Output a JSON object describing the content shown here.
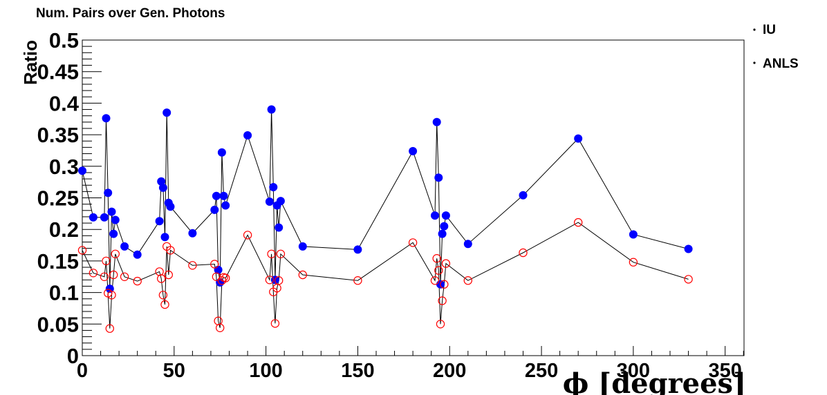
{
  "chart_data": {
    "type": "line",
    "title": "Num. Pairs over Gen. Photons",
    "xlabel": "ϕ [degrees]",
    "ylabel": "Ratio",
    "xlim": [
      0,
      362
    ],
    "ylim": [
      0,
      0.5
    ],
    "x_ticks": [
      "0",
      "50",
      "100",
      "150",
      "200",
      "250",
      "300",
      "350"
    ],
    "y_ticks": [
      "0",
      "0.05",
      "0.1",
      "0.15",
      "0.2",
      "0.25",
      "0.3",
      "0.35",
      "0.4",
      "0.45",
      "0.5"
    ],
    "grid": false,
    "legend_position": "top-right",
    "series": [
      {
        "name": "IU",
        "color": "#0000ff",
        "marker": "filled-circle",
        "points": [
          [
            0,
            0.293
          ],
          [
            6,
            0.219
          ],
          [
            12,
            0.219
          ],
          [
            13,
            0.376
          ],
          [
            14,
            0.258
          ],
          [
            15,
            0.106
          ],
          [
            16,
            0.228
          ],
          [
            17,
            0.193
          ],
          [
            18,
            0.215
          ],
          [
            23,
            0.173
          ],
          [
            30,
            0.16
          ],
          [
            42,
            0.213
          ],
          [
            43,
            0.276
          ],
          [
            44,
            0.266
          ],
          [
            45,
            0.188
          ],
          [
            46,
            0.385
          ],
          [
            47,
            0.242
          ],
          [
            48,
            0.236
          ],
          [
            60,
            0.194
          ],
          [
            72,
            0.231
          ],
          [
            73,
            0.253
          ],
          [
            74,
            0.136
          ],
          [
            75,
            0.116
          ],
          [
            76,
            0.322
          ],
          [
            77,
            0.253
          ],
          [
            78,
            0.238
          ],
          [
            90,
            0.349
          ],
          [
            102,
            0.244
          ],
          [
            103,
            0.39
          ],
          [
            104,
            0.267
          ],
          [
            105,
            0.12
          ],
          [
            106,
            0.238
          ],
          [
            107,
            0.203
          ],
          [
            108,
            0.245
          ],
          [
            120,
            0.173
          ],
          [
            150,
            0.168
          ],
          [
            180,
            0.324
          ],
          [
            192,
            0.222
          ],
          [
            193,
            0.37
          ],
          [
            194,
            0.282
          ],
          [
            195,
            0.113
          ],
          [
            196,
            0.193
          ],
          [
            197,
            0.205
          ],
          [
            198,
            0.222
          ],
          [
            210,
            0.177
          ],
          [
            240,
            0.254
          ],
          [
            270,
            0.344
          ],
          [
            300,
            0.192
          ],
          [
            330,
            0.169
          ]
        ]
      },
      {
        "name": "ANLS",
        "color": "#ff0000",
        "marker": "open-circle",
        "points": [
          [
            0,
            0.167
          ],
          [
            6,
            0.131
          ],
          [
            12,
            0.125
          ],
          [
            13,
            0.15
          ],
          [
            14,
            0.099
          ],
          [
            15,
            0.043
          ],
          [
            16,
            0.096
          ],
          [
            17,
            0.128
          ],
          [
            18,
            0.161
          ],
          [
            23,
            0.125
          ],
          [
            30,
            0.118
          ],
          [
            42,
            0.133
          ],
          [
            43,
            0.122
          ],
          [
            44,
            0.096
          ],
          [
            45,
            0.081
          ],
          [
            46,
            0.173
          ],
          [
            47,
            0.128
          ],
          [
            48,
            0.167
          ],
          [
            60,
            0.143
          ],
          [
            72,
            0.145
          ],
          [
            73,
            0.125
          ],
          [
            74,
            0.055
          ],
          [
            75,
            0.044
          ],
          [
            76,
            0.119
          ],
          [
            77,
            0.124
          ],
          [
            78,
            0.123
          ],
          [
            90,
            0.191
          ],
          [
            102,
            0.12
          ],
          [
            103,
            0.161
          ],
          [
            104,
            0.101
          ],
          [
            105,
            0.051
          ],
          [
            106,
            0.107
          ],
          [
            107,
            0.119
          ],
          [
            108,
            0.161
          ],
          [
            120,
            0.128
          ],
          [
            150,
            0.119
          ],
          [
            180,
            0.179
          ],
          [
            192,
            0.119
          ],
          [
            193,
            0.154
          ],
          [
            194,
            0.135
          ],
          [
            195,
            0.05
          ],
          [
            196,
            0.087
          ],
          [
            197,
            0.113
          ],
          [
            198,
            0.146
          ],
          [
            210,
            0.119
          ],
          [
            240,
            0.163
          ],
          [
            270,
            0.211
          ],
          [
            300,
            0.148
          ],
          [
            330,
            0.121
          ]
        ]
      }
    ]
  }
}
